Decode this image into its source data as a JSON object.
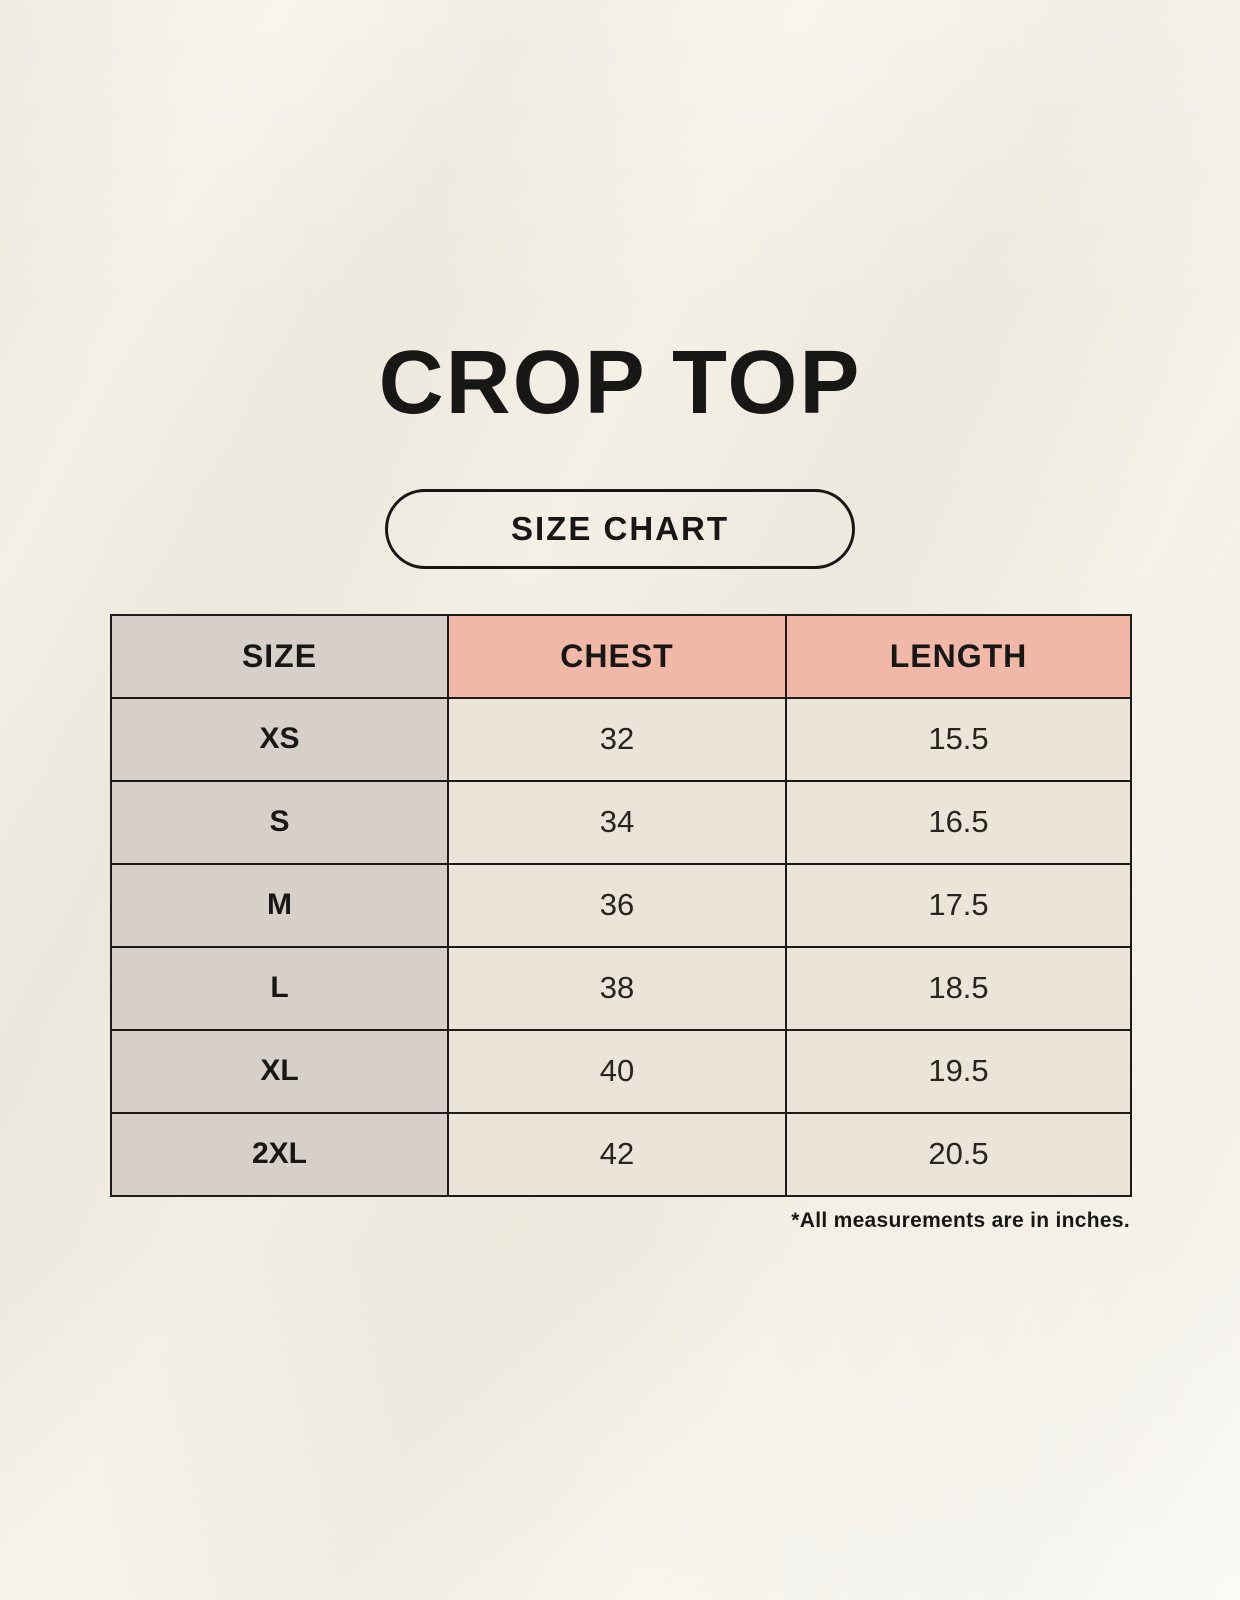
{
  "page": {
    "title": "CROP TOP",
    "badge_label": "SIZE CHART",
    "footnote": "*All measurements are in inches."
  },
  "colors": {
    "background": "#f4f0e6",
    "header_accent_pink": "#f1b7a7",
    "size_column_gray": "#d6cfca",
    "data_cell_cream": "#ebe4d9",
    "border_black": "#1c1b19",
    "text_black": "#171715"
  },
  "chart_data": {
    "type": "table",
    "title": "CROP TOP",
    "subtitle": "SIZE CHART",
    "units": "inches",
    "columns": [
      "SIZE",
      "CHEST",
      "LENGTH"
    ],
    "rows": [
      [
        "XS",
        "32",
        "15.5"
      ],
      [
        "S",
        "34",
        "16.5"
      ],
      [
        "M",
        "36",
        "17.5"
      ],
      [
        "L",
        "38",
        "18.5"
      ],
      [
        "XL",
        "40",
        "19.5"
      ],
      [
        "2XL",
        "42",
        "20.5"
      ]
    ],
    "footnote": "*All measurements are in inches."
  }
}
